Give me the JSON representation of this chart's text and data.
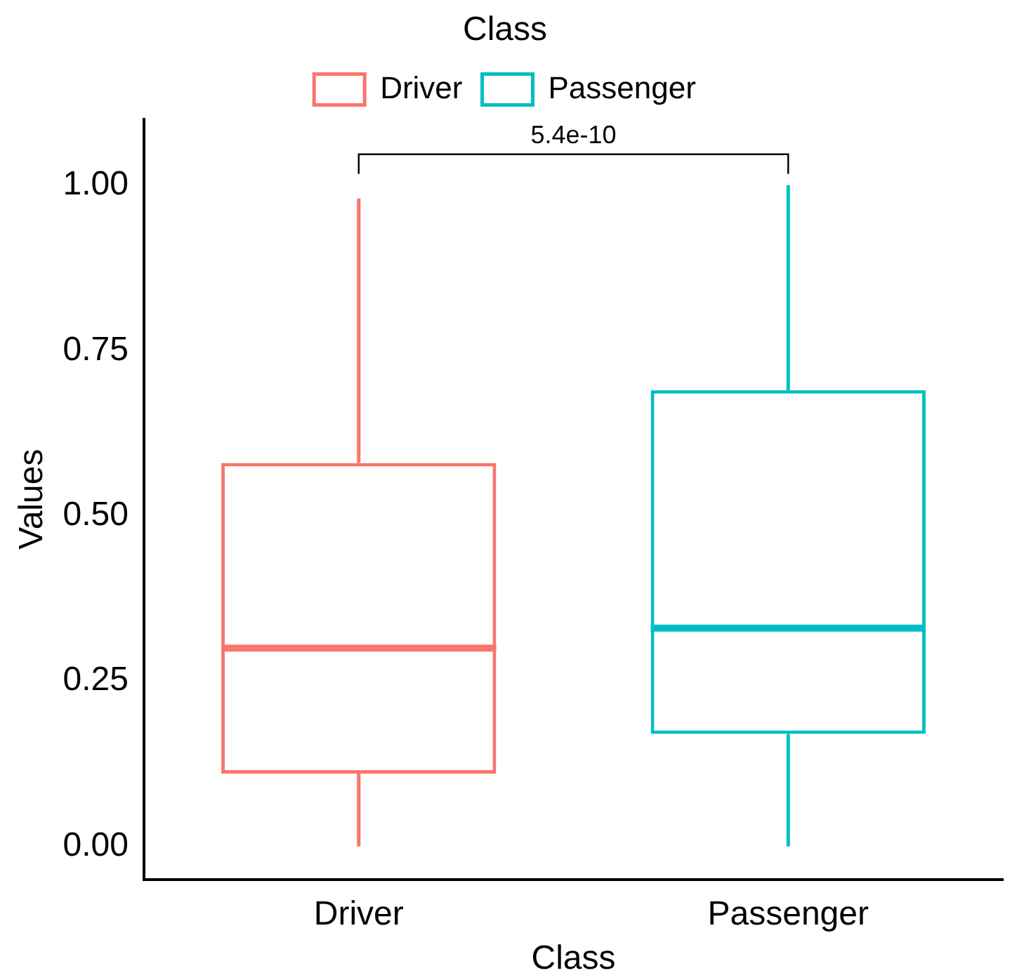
{
  "chart_data": {
    "type": "box",
    "xlabel": "Class",
    "ylabel": "Values",
    "legend_title": "Class",
    "legend": "top",
    "categories": [
      "Driver",
      "Passenger"
    ],
    "series": [
      {
        "name": "Driver",
        "color": "#f8766d",
        "boxes": [
          {
            "low": 0,
            "q1": 0.11,
            "median": 0.3,
            "q3": 0.58,
            "high": 0.98
          },
          null
        ]
      },
      {
        "name": "Passenger",
        "color": "#00bfc4",
        "boxes": [
          null,
          {
            "low": 0,
            "q1": 0.17,
            "median": 0.33,
            "q3": 0.69,
            "high": 1.0
          }
        ]
      }
    ],
    "ylim": [
      -0.05,
      1.1
    ],
    "yticks": [
      {
        "value": 0,
        "label": "0.00"
      },
      {
        "value": 0.25,
        "label": "0.25"
      },
      {
        "value": 0.5,
        "label": "0.50"
      },
      {
        "value": 0.75,
        "label": "0.75"
      },
      {
        "value": 1,
        "label": "1.00"
      }
    ],
    "grid": false,
    "annotations": [
      "5.4e-10"
    ]
  }
}
